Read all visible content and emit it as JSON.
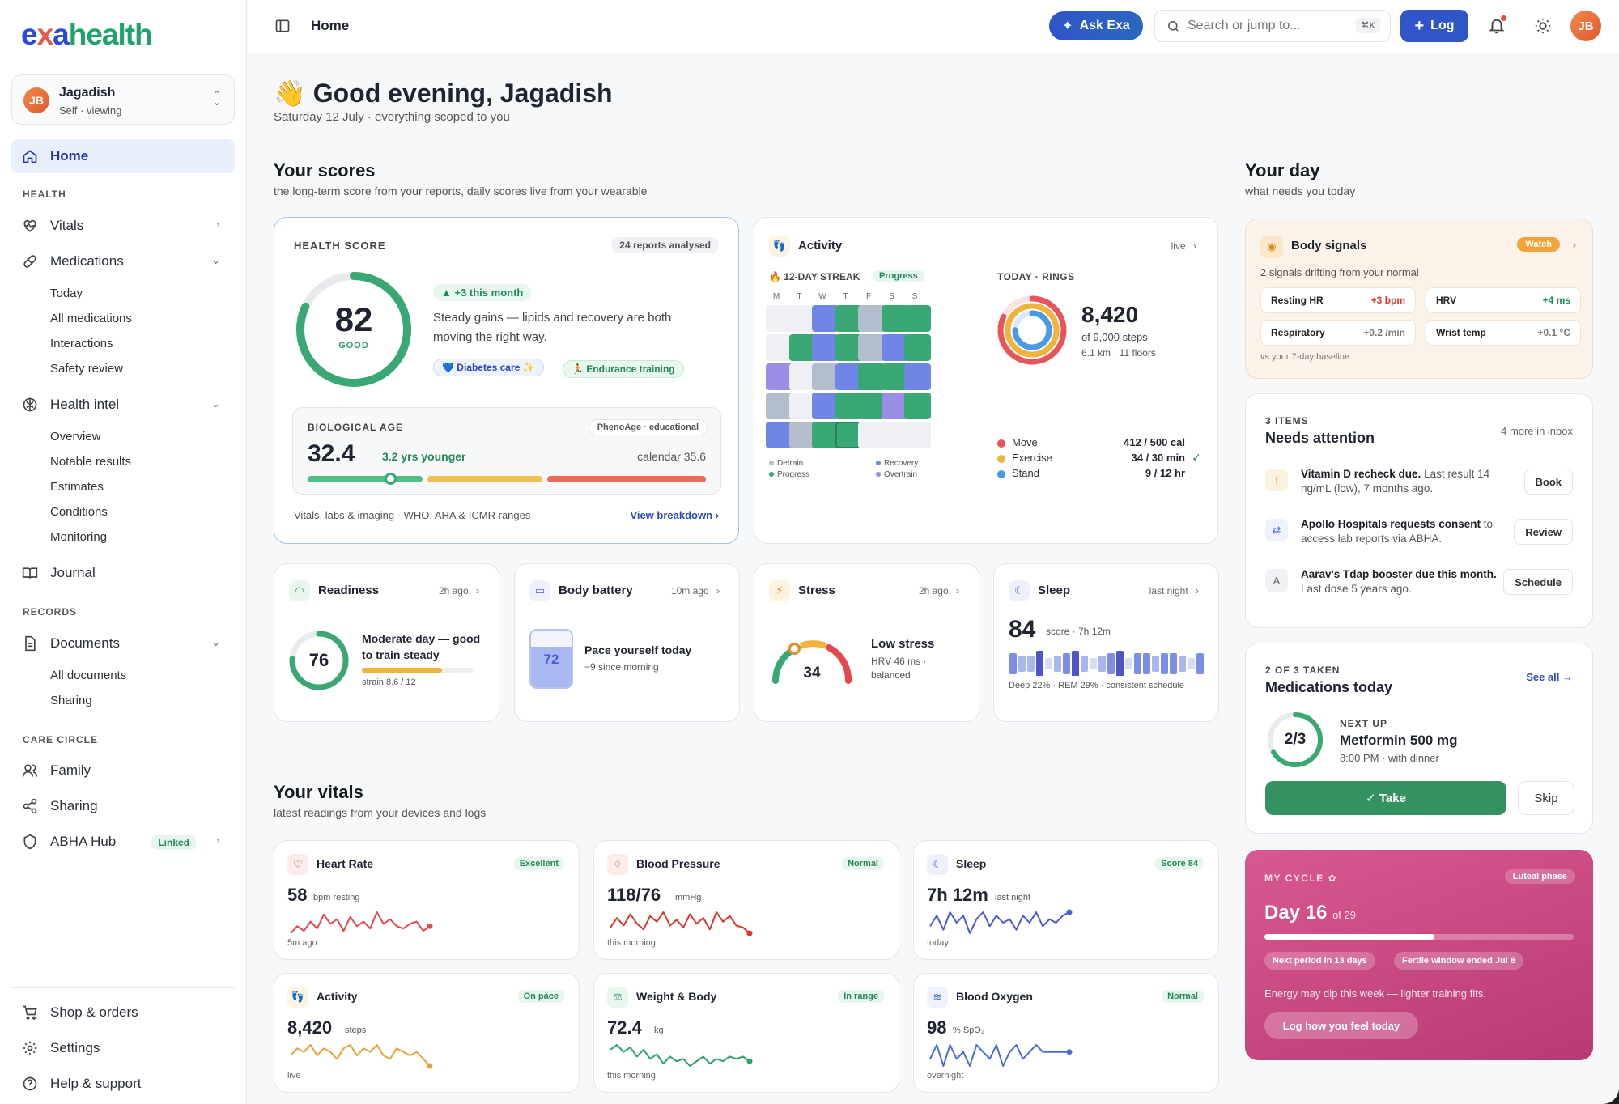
{
  "brand": {
    "p1": "e",
    "p2": "x",
    "p3": "a",
    "p4": "health"
  },
  "profile": {
    "initials": "JB",
    "name": "Jagadish",
    "subtitle": "Self · viewing"
  },
  "sidebar": {
    "home": "Home",
    "sec_health": "HEALTH",
    "vitals": "Vitals",
    "medications": "Medications",
    "med_sub": [
      "Today",
      "All medications",
      "Interactions",
      "Safety review"
    ],
    "health_intel": "Health intel",
    "hi_sub": [
      "Overview",
      "Notable results",
      "Estimates",
      "Conditions",
      "Monitoring"
    ],
    "journal": "Journal",
    "sec_records": "RECORDS",
    "documents": "Documents",
    "doc_sub": [
      "All documents",
      "Sharing"
    ],
    "sec_care": "CARE CIRCLE",
    "family": "Family",
    "sharing": "Sharing",
    "abha": "ABHA Hub",
    "abha_badge": "Linked",
    "shop": "Shop & orders",
    "settings": "Settings",
    "help": "Help & support"
  },
  "topbar": {
    "title": "Home",
    "ask": "Ask Exa",
    "search_placeholder": "Search or jump to...",
    "shortcut": "⌘K",
    "log": "Log",
    "initials": "JB"
  },
  "greeting": {
    "emoji": "👋",
    "title": "Good evening, Jagadish",
    "subtitle": "Saturday 12 July · everything scoped to you"
  },
  "scores": {
    "title": "Your scores",
    "subtitle": "the long-term score from your reports, daily scores live from your wearable"
  },
  "health_score": {
    "label": "HEALTH SCORE",
    "reports": "24 reports analysed",
    "value": "82",
    "grade": "GOOD",
    "fraction": 0.82,
    "delta": "▲ +3 this month",
    "desc": "Steady gains — lipids and recovery are both moving the right way.",
    "tag1": "💙 Diabetes care ✨",
    "tag2": "🏃 Endurance training",
    "bio_label": "BIOLOGICAL AGE",
    "bio_badge": "PhenoAge · educational",
    "bio_value": "32.4",
    "bio_younger": "3.2 yrs younger",
    "bio_calendar": "calendar 35.6",
    "footer": "Vitals, labs & imaging · WHO, AHA & ICMR ranges",
    "breakdown": "View breakdown"
  },
  "activity": {
    "title": "Activity",
    "live": "live",
    "streak": "🔥 12-DAY STREAK",
    "progress": "Progress",
    "days": [
      "M",
      "T",
      "W",
      "T",
      "F",
      "S",
      "S"
    ],
    "grid": [
      [
        "e",
        "e",
        "p",
        "g",
        "v",
        "g",
        "g"
      ],
      [
        "e",
        "g",
        "p",
        "g",
        "v",
        "p",
        "g"
      ],
      [
        "u",
        "e",
        "v",
        "p",
        "g",
        "g",
        "p"
      ],
      [
        "v",
        "e",
        "p",
        "g",
        "g",
        "u",
        "g"
      ],
      [
        "p",
        "v",
        "g",
        "g",
        "e",
        "e",
        "e"
      ]
    ],
    "leg": [
      "Detrain",
      "Recovery",
      "Progress",
      "Overtrain"
    ],
    "rings_label": "TODAY · RINGS",
    "steps": "8,420",
    "steps_goal": "of 9,000 steps",
    "dist": "6.1 km · 11 floors",
    "move_label": "Move",
    "move_val": "412 / 500 cal",
    "move_frac": 0.82,
    "ex_label": "Exercise",
    "ex_val": "34 / 30 min",
    "ex_frac": 1.0,
    "stand_label": "Stand",
    "stand_val": "9 / 12 hr",
    "stand_frac": 0.75
  },
  "readiness": {
    "title": "Readiness",
    "ago": "2h ago",
    "value": "76",
    "fraction": 0.76,
    "desc": "Moderate day — good to train steady",
    "strain": "strain 8.6 / 12",
    "strain_frac": 0.72
  },
  "battery": {
    "title": "Body battery",
    "ago": "10m ago",
    "value": "72",
    "fraction": 0.72,
    "desc": "Pace yourself today",
    "sub": "−9 since morning"
  },
  "stress": {
    "title": "Stress",
    "ago": "2h ago",
    "value": "34",
    "fraction": 0.34,
    "desc": "Low stress",
    "sub": "HRV 46 ms · balanced"
  },
  "sleep": {
    "title": "Sleep",
    "ago": "last night",
    "value": "84",
    "score": "score · 7h 12m",
    "sub": "Deep 22% · REM 29% · consistent schedule",
    "stages": [
      3,
      2,
      2,
      4,
      1,
      2,
      3,
      4,
      2,
      1,
      2,
      3,
      4,
      1,
      3,
      3,
      2,
      3,
      3,
      2,
      1,
      3
    ]
  },
  "vitals": {
    "title": "Your vitals",
    "subtitle": "latest readings from your devices and logs",
    "cards": [
      {
        "title": "Heart Rate",
        "badge": "Excellent",
        "value": "58",
        "unit": "bpm resting",
        "when": "5m ago",
        "color": "#e5484d",
        "icon": "heart-icon",
        "series": [
          58,
          61,
          59,
          63,
          60,
          66,
          62,
          64,
          59,
          65,
          61,
          63,
          60,
          67,
          62,
          64,
          61,
          60,
          62,
          63,
          59,
          61
        ]
      },
      {
        "title": "Blood Pressure",
        "badge": "Normal",
        "value": "118/76",
        "unit": "mmHg",
        "when": "this morning",
        "color": "#d9382c",
        "icon": "drop-icon",
        "series": [
          116,
          121,
          117,
          123,
          118,
          115,
          122,
          119,
          124,
          117,
          120,
          116,
          123,
          118,
          121,
          115,
          124,
          119,
          122,
          117,
          116,
          113
        ]
      },
      {
        "title": "Sleep",
        "badge": "Score 84",
        "value": "7h 12m",
        "unit": "last night",
        "when": "today",
        "color": "#4c5bd4",
        "icon": "moon-icon",
        "series": [
          5,
          8,
          4,
          9,
          6,
          8,
          3,
          7,
          9,
          5,
          8,
          6,
          7,
          4,
          8,
          6,
          9,
          5,
          7,
          6,
          8,
          9
        ]
      },
      {
        "title": "Activity",
        "badge": "On pace",
        "value": "8,420",
        "unit": "steps",
        "when": "live",
        "color": "#e8a23a",
        "icon": "footprint-icon",
        "series": [
          6,
          8,
          7,
          9,
          6,
          8,
          7,
          5,
          8,
          9,
          6,
          8,
          7,
          9,
          6,
          5,
          8,
          7,
          6,
          7,
          5,
          3
        ]
      },
      {
        "title": "Weight & Body",
        "badge": "In range",
        "value": "72.4",
        "unit": "kg",
        "when": "this morning",
        "color": "#2ea36b",
        "icon": "scale-icon",
        "series": [
          72.9,
          73.1,
          72.8,
          73.0,
          72.6,
          72.9,
          72.5,
          72.7,
          72.3,
          72.6,
          72.4,
          72.5,
          72.2,
          72.4,
          72.6,
          72.3,
          72.5,
          72.4,
          72.6,
          72.5,
          72.6,
          72.4
        ]
      },
      {
        "title": "Blood Oxygen",
        "badge": "Normal",
        "value": "98",
        "unit": "% SpO₂",
        "when": "overnight",
        "color": "#4a6ad4",
        "icon": "lungs-icon",
        "series": [
          97,
          99,
          96,
          99,
          97,
          98,
          96,
          99,
          98,
          97,
          99,
          96,
          98,
          99,
          97,
          98,
          99,
          98,
          98,
          98,
          98,
          98
        ]
      }
    ]
  },
  "day": {
    "title": "Your day",
    "subtitle": "what needs you today"
  },
  "signals": {
    "title": "Body signals",
    "badge": "Watch",
    "sub": "2 signals drifting from your normal",
    "items": [
      {
        "name": "Resting HR",
        "val": "+3 bpm",
        "color": "#d93a2b"
      },
      {
        "name": "HRV",
        "val": "+4 ms",
        "color": "#1f8a55"
      },
      {
        "name": "Respiratory",
        "val": "+0.2 /min",
        "color": "#777"
      },
      {
        "name": "Wrist temp",
        "val": "+0.1 °C",
        "color": "#777"
      }
    ],
    "foot": "vs your 7-day baseline"
  },
  "attention": {
    "count": "3 ITEMS",
    "title": "Needs attention",
    "more": "4 more in inbox",
    "items": [
      {
        "icon": "!",
        "bold": "Vitamin D recheck due.",
        "rest": " Last result 14 ng/mL (low), 7 months ago.",
        "action": "Book"
      },
      {
        "icon": "⇄",
        "bold": "Apollo Hospitals requests consent",
        "rest": " to access lab reports via ABHA.",
        "action": "Review"
      },
      {
        "icon": "A",
        "bold": "Aarav's Tdap booster due this month.",
        "rest": " Last dose 5 years ago.",
        "action": "Schedule"
      }
    ]
  },
  "meds": {
    "count": "2 OF 3 TAKEN",
    "title": "Medications today",
    "see_all": "See all →",
    "ring": "2/3",
    "fraction": 0.667,
    "next_label": "NEXT UP",
    "next_name": "Metformin 500 mg",
    "next_time": "8:00 PM · with dinner",
    "take": "✓ Take",
    "skip": "Skip"
  },
  "cycle": {
    "label": "MY CYCLE",
    "phase": "Luteal phase",
    "day": "Day 16",
    "of": "of 29",
    "fraction": 0.55,
    "chip1": "Next period in 13 days",
    "chip2": "Fertile window ended Jul 8",
    "note": "Energy may dip this week — lighter training fits.",
    "cta": "Log how you feel today"
  }
}
